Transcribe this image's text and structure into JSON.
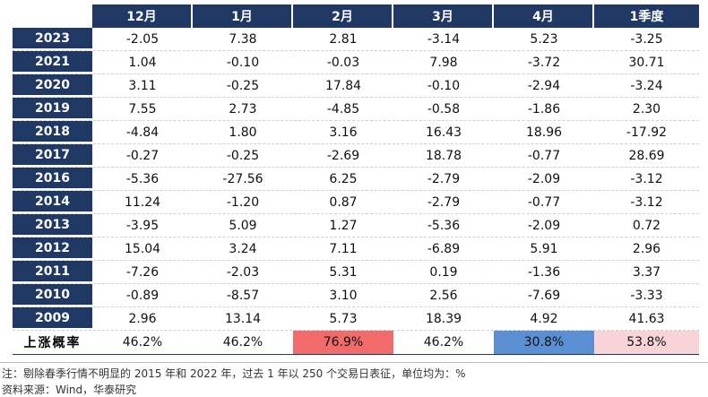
{
  "columns": [
    "12月",
    "1月",
    "2月",
    "3月",
    "4月",
    "1季度"
  ],
  "rows": [
    {
      "year": "2023",
      "values": [
        "-2.05",
        "7.38",
        "2.81",
        "-3.14",
        "5.23",
        "-3.25"
      ]
    },
    {
      "year": "2021",
      "values": [
        "1.04",
        "-0.10",
        "-0.03",
        "7.98",
        "-3.72",
        "30.71"
      ]
    },
    {
      "year": "2020",
      "values": [
        "3.11",
        "-0.25",
        "17.84",
        "-0.10",
        "-2.94",
        "-3.24"
      ]
    },
    {
      "year": "2019",
      "values": [
        "7.55",
        "2.73",
        "-4.85",
        "-0.58",
        "-1.86",
        "2.30"
      ]
    },
    {
      "year": "2018",
      "values": [
        "-4.84",
        "1.80",
        "3.16",
        "16.43",
        "18.96",
        "-17.92"
      ]
    },
    {
      "year": "2017",
      "values": [
        "-0.27",
        "-0.25",
        "-2.69",
        "18.78",
        "-0.77",
        "28.69"
      ]
    },
    {
      "year": "2016",
      "values": [
        "-5.36",
        "-27.56",
        "6.25",
        "-2.79",
        "-2.09",
        "-3.12"
      ]
    },
    {
      "year": "2014",
      "values": [
        "11.24",
        "-1.20",
        "0.87",
        "-2.79",
        "-0.77",
        "-3.12"
      ]
    },
    {
      "year": "2013",
      "values": [
        "-3.95",
        "5.09",
        "1.27",
        "-5.36",
        "-2.09",
        "0.72"
      ]
    },
    {
      "year": "2012",
      "values": [
        "15.04",
        "3.24",
        "7.11",
        "-6.89",
        "5.91",
        "2.96"
      ]
    },
    {
      "year": "2011",
      "values": [
        "-7.26",
        "-2.03",
        "5.31",
        "0.19",
        "-1.36",
        "3.37"
      ]
    },
    {
      "year": "2010",
      "values": [
        "-0.89",
        "-8.57",
        "3.10",
        "2.56",
        "-7.69",
        "-3.33"
      ]
    },
    {
      "year": "2009",
      "values": [
        "2.96",
        "13.14",
        "5.73",
        "18.39",
        "4.92",
        "41.63"
      ]
    }
  ],
  "probability": {
    "label": "上涨概率",
    "values": [
      "46.2%",
      "46.2%",
      "76.9%",
      "46.2%",
      "30.8%",
      "53.8%"
    ],
    "highlight_colors": [
      "",
      "",
      "#f26b6b",
      "",
      "#5b8fd3",
      "#f8d3d8"
    ]
  },
  "notes": {
    "note": "注：剔除春季行情不明显的 2015 年和 2022 年，过去 1 年以 250 个交易日表征，单位均为：%",
    "source": "资料来源：Wind，华泰研究"
  },
  "colors": {
    "header_bg": "#1f3864",
    "header_text": "#ffffff"
  }
}
